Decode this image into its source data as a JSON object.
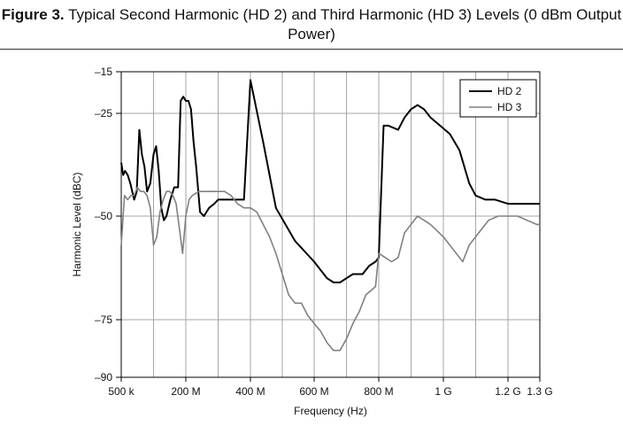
{
  "caption": {
    "label": "Figure 3.",
    "text": "Typical Second Harmonic (HD 2) and Third Harmonic (HD 3) Levels (0 dBm Output Power)"
  },
  "chart_data": {
    "type": "line",
    "title": "",
    "xlabel": "Frequency (Hz)",
    "ylabel": "Harmonic Level (dBC)",
    "xlim": [
      0,
      1300000000
    ],
    "ylim": [
      -90,
      -15
    ],
    "y_axis_ticks": [
      {
        "value": -15,
        "label": "–15"
      },
      {
        "value": -25,
        "label": "–25"
      },
      {
        "value": -50,
        "label": "–50"
      },
      {
        "value": -75,
        "label": "–75"
      },
      {
        "value": -90,
        "label": "–90"
      }
    ],
    "x_axis_ticks": [
      {
        "value": 0,
        "label": "500 k"
      },
      {
        "value": 200000000,
        "label": "200 M"
      },
      {
        "value": 400000000,
        "label": "400 M"
      },
      {
        "value": 600000000,
        "label": "600 M"
      },
      {
        "value": 800000000,
        "label": "800 M"
      },
      {
        "value": 1000000000,
        "label": "1 G"
      },
      {
        "value": 1200000000,
        "label": "1.2 G"
      },
      {
        "value": 1300000000,
        "label": "1.3 G"
      }
    ],
    "grid": true,
    "legend_position": "top-right",
    "series": [
      {
        "name": "HD 2",
        "color": "#000000",
        "x": [
          0,
          6,
          12,
          20,
          28,
          40,
          48,
          56,
          64,
          72,
          80,
          90,
          100,
          108,
          116,
          124,
          132,
          140,
          152,
          164,
          176,
          184,
          192,
          200,
          208,
          216,
          224,
          232,
          244,
          256,
          272,
          288,
          300,
          312,
          324,
          336,
          348,
          360,
          380,
          400,
          440,
          480,
          540,
          600,
          640,
          660,
          680,
          700,
          720,
          750,
          770,
          790,
          800,
          815,
          830,
          860,
          880,
          900,
          920,
          940,
          960,
          990,
          1020,
          1050,
          1080,
          1100,
          1130,
          1160,
          1200,
          1260,
          1300
        ],
        "y": [
          -37,
          -40,
          -39,
          -40,
          -42,
          -46,
          -44,
          -29,
          -35,
          -38,
          -44,
          -42,
          -35,
          -33,
          -39,
          -48,
          -51,
          -50,
          -46,
          -43,
          -43,
          -22,
          -21,
          -22,
          -22,
          -24,
          -32,
          -38,
          -49,
          -50,
          -48,
          -47,
          -46,
          -46,
          -46,
          -46,
          -46,
          -46,
          -46,
          -17,
          -32,
          -48,
          -56,
          -61,
          -65,
          -66,
          -66,
          -65,
          -64,
          -64,
          -62,
          -61,
          -60,
          -28,
          -28,
          -29,
          -26,
          -24,
          -23,
          -24,
          -26,
          -28,
          -30,
          -34,
          -42,
          -45,
          -46,
          -46,
          -47,
          -47,
          -47
        ]
      },
      {
        "name": "HD 3",
        "color": "#808080",
        "x": [
          0,
          10,
          20,
          30,
          40,
          50,
          60,
          70,
          80,
          90,
          100,
          110,
          120,
          130,
          140,
          150,
          160,
          170,
          180,
          190,
          200,
          210,
          220,
          240,
          260,
          280,
          300,
          320,
          340,
          360,
          380,
          400,
          420,
          440,
          460,
          480,
          500,
          520,
          540,
          560,
          580,
          600,
          620,
          640,
          660,
          680,
          700,
          720,
          740,
          760,
          790,
          800,
          820,
          840,
          860,
          880,
          900,
          920,
          940,
          960,
          1000,
          1060,
          1080,
          1100,
          1140,
          1170,
          1200,
          1230,
          1260,
          1290,
          1300
        ],
        "y": [
          -57,
          -45,
          -46,
          -45,
          -45,
          -43,
          -44,
          -44,
          -45,
          -48,
          -57,
          -55,
          -49,
          -46,
          -44,
          -44,
          -45,
          -47,
          -53,
          -59,
          -50,
          -46,
          -45,
          -44,
          -44,
          -44,
          -44,
          -44,
          -45,
          -47,
          -48,
          -48,
          -49,
          -52,
          -55,
          -59,
          -64,
          -69,
          -71,
          -71,
          -74,
          -76,
          -78,
          -81,
          -83,
          -83,
          -80,
          -76,
          -73,
          -69,
          -67,
          -59,
          -60,
          -61,
          -60,
          -54,
          -52,
          -50,
          -51,
          -52,
          -55,
          -61,
          -57,
          -55,
          -51,
          -50,
          -50,
          -50,
          -51,
          -52,
          -52
        ]
      }
    ]
  }
}
